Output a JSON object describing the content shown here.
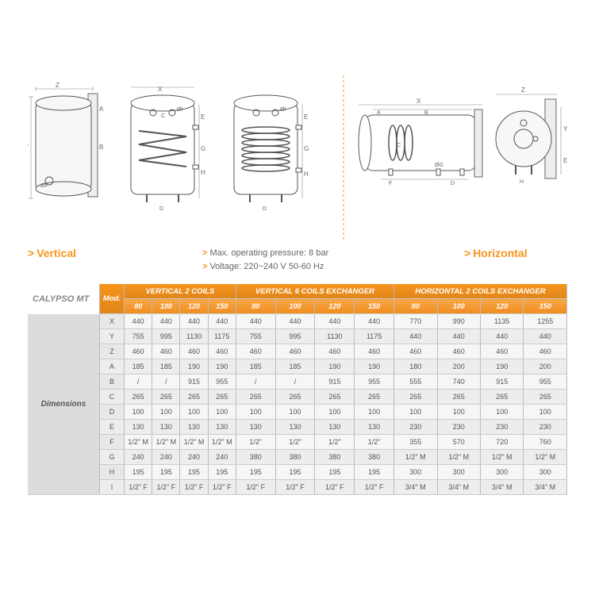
{
  "labels": {
    "vertical": "Vertical",
    "horizontal": "Horizontal",
    "spec1": "Max. operating pressure: 8 bar",
    "spec2": "Voltage: 220~240 V 50-60 Hz"
  },
  "table": {
    "title": "CALYPSO MT",
    "rowgroup": "Dimensions",
    "modLabel": "Mod.",
    "sections": [
      "VERTICAL 2 COILS",
      "VERTICAL 6 COILS EXCHANGER",
      "HORIZONTAL 2 COILS EXCHANGER"
    ],
    "models": [
      "80",
      "100",
      "120",
      "150",
      "80",
      "100",
      "120",
      "150",
      "80",
      "100",
      "120",
      "150"
    ],
    "rows": [
      {
        "k": "X",
        "v": [
          "440",
          "440",
          "440",
          "440",
          "440",
          "440",
          "440",
          "440",
          "770",
          "990",
          "1135",
          "1255"
        ]
      },
      {
        "k": "Y",
        "v": [
          "755",
          "995",
          "1130",
          "1175",
          "755",
          "995",
          "1130",
          "1175",
          "440",
          "440",
          "440",
          "440"
        ]
      },
      {
        "k": "Z",
        "v": [
          "460",
          "460",
          "460",
          "460",
          "460",
          "460",
          "460",
          "460",
          "460",
          "460",
          "460",
          "460"
        ]
      },
      {
        "k": "A",
        "v": [
          "185",
          "185",
          "190",
          "190",
          "185",
          "185",
          "190",
          "190",
          "180",
          "200",
          "190",
          "200"
        ]
      },
      {
        "k": "B",
        "v": [
          "/",
          "/",
          "915",
          "955",
          "/",
          "/",
          "915",
          "955",
          "555",
          "740",
          "915",
          "955"
        ]
      },
      {
        "k": "C",
        "v": [
          "265",
          "265",
          "265",
          "265",
          "265",
          "265",
          "265",
          "265",
          "265",
          "265",
          "265",
          "265"
        ]
      },
      {
        "k": "D",
        "v": [
          "100",
          "100",
          "100",
          "100",
          "100",
          "100",
          "100",
          "100",
          "100",
          "100",
          "100",
          "100"
        ]
      },
      {
        "k": "E",
        "v": [
          "130",
          "130",
          "130",
          "130",
          "130",
          "130",
          "130",
          "130",
          "230",
          "230",
          "230",
          "230"
        ]
      },
      {
        "k": "F",
        "v": [
          "1/2\" M",
          "1/2\" M",
          "1/2\" M",
          "1/2\" M",
          "1/2\"",
          "1/2\"",
          "1/2\"",
          "1/2\"",
          "355",
          "570",
          "720",
          "760"
        ]
      },
      {
        "k": "G",
        "v": [
          "240",
          "240",
          "240",
          "240",
          "380",
          "380",
          "380",
          "380",
          "1/2\" M",
          "1/2\" M",
          "1/2\" M",
          "1/2\" M"
        ]
      },
      {
        "k": "H",
        "v": [
          "195",
          "195",
          "195",
          "195",
          "195",
          "195",
          "195",
          "195",
          "300",
          "300",
          "300",
          "300"
        ]
      },
      {
        "k": "I",
        "v": [
          "1/2\" F",
          "1/2\" F",
          "1/2\" F",
          "1/2\" F",
          "1/2\" F",
          "1/2\" F",
          "1/2\" F",
          "1/2\" F",
          "3/4\" M",
          "3/4\" M",
          "3/4\" M",
          "3/4\" M"
        ]
      }
    ]
  },
  "colors": {
    "orange": "#f7941d",
    "grey": "#808080",
    "lightgrey": "#d0d0d0"
  }
}
